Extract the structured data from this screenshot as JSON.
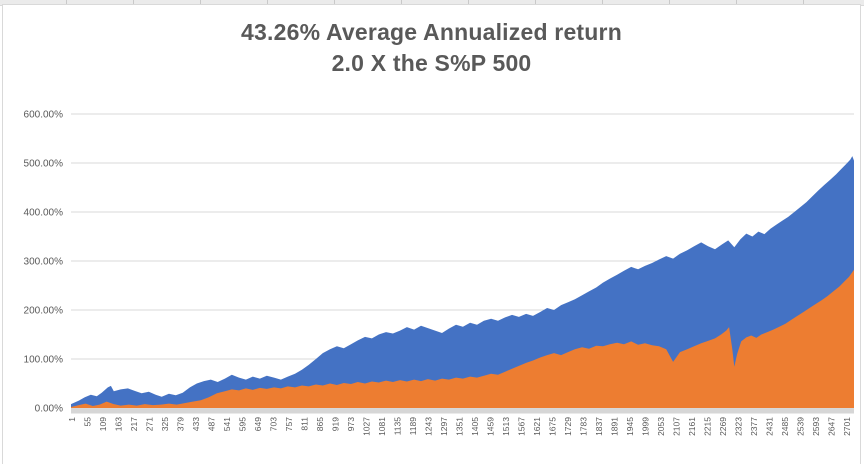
{
  "chart": {
    "title_line1": "43.26% Average Annualized return",
    "title_line2": "2.0 X the S%P 500"
  },
  "chart_data": {
    "type": "area",
    "title": "43.26% Average Annualized return 2.0 X the S%P 500",
    "legend_position": "none",
    "grid": true,
    "grid_color": "#d9d9d9",
    "axis_text_color": "#595959",
    "title_color": "#595959",
    "baseline_band_color": "#d6d6d6",
    "x_axis": {
      "range": [
        1,
        2728
      ],
      "tick_labels": [
        1,
        55,
        109,
        163,
        217,
        271,
        325,
        379,
        433,
        487,
        541,
        595,
        649,
        703,
        757,
        811,
        865,
        919,
        973,
        1027,
        1081,
        1135,
        1189,
        1243,
        1297,
        1351,
        1405,
        1459,
        1513,
        1567,
        1621,
        1675,
        1729,
        1783,
        1837,
        1891,
        1945,
        1999,
        2053,
        2107,
        2161,
        2215,
        2269,
        2323,
        2377,
        2431,
        2485,
        2539,
        2593,
        2647,
        2701
      ]
    },
    "y_axis": {
      "range_pct": [
        0,
        600
      ],
      "ticks": [
        {
          "value": 0,
          "label": "0.00%"
        },
        {
          "value": 100,
          "label": "100.00%"
        },
        {
          "value": 200,
          "label": "200.00%"
        },
        {
          "value": 300,
          "label": "300.00%"
        },
        {
          "value": 400,
          "label": "400.00%"
        },
        {
          "value": 500,
          "label": "500.00%"
        },
        {
          "value": 600,
          "label": "600.00%"
        }
      ]
    },
    "series": [
      {
        "name": "blue",
        "color": "#4472c4",
        "points": [
          [
            1,
            8
          ],
          [
            28,
            15
          ],
          [
            49,
            22
          ],
          [
            70,
            27
          ],
          [
            91,
            24
          ],
          [
            108,
            31
          ],
          [
            129,
            42
          ],
          [
            140,
            45
          ],
          [
            150,
            34
          ],
          [
            174,
            38
          ],
          [
            199,
            40
          ],
          [
            223,
            35
          ],
          [
            247,
            30
          ],
          [
            272,
            33
          ],
          [
            296,
            27
          ],
          [
            317,
            23
          ],
          [
            342,
            29
          ],
          [
            366,
            26
          ],
          [
            390,
            31
          ],
          [
            415,
            42
          ],
          [
            439,
            50
          ],
          [
            464,
            55
          ],
          [
            488,
            58
          ],
          [
            512,
            53
          ],
          [
            537,
            60
          ],
          [
            561,
            68
          ],
          [
            586,
            62
          ],
          [
            610,
            58
          ],
          [
            634,
            64
          ],
          [
            659,
            60
          ],
          [
            683,
            66
          ],
          [
            708,
            62
          ],
          [
            732,
            58
          ],
          [
            756,
            64
          ],
          [
            781,
            70
          ],
          [
            805,
            78
          ],
          [
            829,
            88
          ],
          [
            854,
            100
          ],
          [
            878,
            112
          ],
          [
            903,
            120
          ],
          [
            927,
            126
          ],
          [
            951,
            122
          ],
          [
            976,
            130
          ],
          [
            1000,
            138
          ],
          [
            1025,
            145
          ],
          [
            1049,
            142
          ],
          [
            1073,
            150
          ],
          [
            1098,
            155
          ],
          [
            1122,
            152
          ],
          [
            1147,
            158
          ],
          [
            1171,
            165
          ],
          [
            1196,
            160
          ],
          [
            1220,
            168
          ],
          [
            1244,
            163
          ],
          [
            1269,
            158
          ],
          [
            1293,
            153
          ],
          [
            1317,
            162
          ],
          [
            1342,
            170
          ],
          [
            1366,
            166
          ],
          [
            1391,
            174
          ],
          [
            1415,
            170
          ],
          [
            1439,
            178
          ],
          [
            1464,
            182
          ],
          [
            1488,
            178
          ],
          [
            1513,
            185
          ],
          [
            1537,
            190
          ],
          [
            1561,
            186
          ],
          [
            1586,
            192
          ],
          [
            1610,
            188
          ],
          [
            1635,
            196
          ],
          [
            1659,
            204
          ],
          [
            1683,
            200
          ],
          [
            1708,
            210
          ],
          [
            1732,
            216
          ],
          [
            1756,
            222
          ],
          [
            1781,
            230
          ],
          [
            1805,
            238
          ],
          [
            1830,
            246
          ],
          [
            1854,
            256
          ],
          [
            1878,
            264
          ],
          [
            1903,
            272
          ],
          [
            1927,
            280
          ],
          [
            1952,
            288
          ],
          [
            1976,
            283
          ],
          [
            2000,
            290
          ],
          [
            2025,
            296
          ],
          [
            2049,
            303
          ],
          [
            2074,
            310
          ],
          [
            2098,
            305
          ],
          [
            2122,
            315
          ],
          [
            2147,
            322
          ],
          [
            2171,
            330
          ],
          [
            2196,
            338
          ],
          [
            2220,
            330
          ],
          [
            2244,
            324
          ],
          [
            2269,
            334
          ],
          [
            2290,
            342
          ],
          [
            2311,
            328
          ],
          [
            2332,
            344
          ],
          [
            2353,
            356
          ],
          [
            2374,
            350
          ],
          [
            2395,
            360
          ],
          [
            2416,
            355
          ],
          [
            2437,
            366
          ],
          [
            2457,
            374
          ],
          [
            2478,
            382
          ],
          [
            2499,
            390
          ],
          [
            2520,
            400
          ],
          [
            2541,
            410
          ],
          [
            2562,
            420
          ],
          [
            2583,
            432
          ],
          [
            2604,
            444
          ],
          [
            2624,
            455
          ],
          [
            2645,
            466
          ],
          [
            2666,
            477
          ],
          [
            2684,
            488
          ],
          [
            2701,
            498
          ],
          [
            2715,
            507
          ],
          [
            2722,
            514
          ],
          [
            2728,
            505
          ]
        ]
      },
      {
        "name": "orange",
        "color": "#ed7d31",
        "points": [
          [
            1,
            2
          ],
          [
            28,
            6
          ],
          [
            52,
            9
          ],
          [
            77,
            4
          ],
          [
            101,
            7
          ],
          [
            125,
            13
          ],
          [
            150,
            8
          ],
          [
            174,
            5
          ],
          [
            202,
            7
          ],
          [
            230,
            5
          ],
          [
            258,
            8
          ],
          [
            286,
            6
          ],
          [
            314,
            7
          ],
          [
            342,
            9
          ],
          [
            369,
            7
          ],
          [
            397,
            10
          ],
          [
            425,
            13
          ],
          [
            453,
            16
          ],
          [
            481,
            22
          ],
          [
            509,
            30
          ],
          [
            537,
            34
          ],
          [
            561,
            38
          ],
          [
            586,
            36
          ],
          [
            610,
            40
          ],
          [
            634,
            37
          ],
          [
            659,
            41
          ],
          [
            683,
            39
          ],
          [
            708,
            42
          ],
          [
            732,
            40
          ],
          [
            756,
            44
          ],
          [
            781,
            42
          ],
          [
            805,
            46
          ],
          [
            829,
            44
          ],
          [
            854,
            48
          ],
          [
            878,
            46
          ],
          [
            903,
            50
          ],
          [
            927,
            47
          ],
          [
            951,
            51
          ],
          [
            976,
            49
          ],
          [
            1000,
            53
          ],
          [
            1025,
            50
          ],
          [
            1049,
            54
          ],
          [
            1073,
            52
          ],
          [
            1098,
            56
          ],
          [
            1122,
            53
          ],
          [
            1147,
            57
          ],
          [
            1171,
            54
          ],
          [
            1196,
            58
          ],
          [
            1220,
            55
          ],
          [
            1244,
            59
          ],
          [
            1269,
            56
          ],
          [
            1293,
            60
          ],
          [
            1317,
            58
          ],
          [
            1342,
            62
          ],
          [
            1366,
            60
          ],
          [
            1391,
            64
          ],
          [
            1415,
            62
          ],
          [
            1439,
            66
          ],
          [
            1464,
            70
          ],
          [
            1488,
            68
          ],
          [
            1513,
            74
          ],
          [
            1537,
            80
          ],
          [
            1561,
            86
          ],
          [
            1586,
            92
          ],
          [
            1610,
            97
          ],
          [
            1635,
            103
          ],
          [
            1659,
            108
          ],
          [
            1683,
            112
          ],
          [
            1708,
            108
          ],
          [
            1732,
            114
          ],
          [
            1756,
            120
          ],
          [
            1781,
            124
          ],
          [
            1805,
            121
          ],
          [
            1830,
            127
          ],
          [
            1854,
            126
          ],
          [
            1878,
            130
          ],
          [
            1903,
            133
          ],
          [
            1927,
            130
          ],
          [
            1952,
            136
          ],
          [
            1976,
            129
          ],
          [
            2000,
            132
          ],
          [
            2025,
            128
          ],
          [
            2049,
            126
          ],
          [
            2074,
            120
          ],
          [
            2098,
            94
          ],
          [
            2122,
            114
          ],
          [
            2147,
            120
          ],
          [
            2171,
            126
          ],
          [
            2196,
            132
          ],
          [
            2220,
            137
          ],
          [
            2244,
            142
          ],
          [
            2265,
            150
          ],
          [
            2283,
            158
          ],
          [
            2293,
            165
          ],
          [
            2304,
            120
          ],
          [
            2311,
            84
          ],
          [
            2321,
            110
          ],
          [
            2335,
            136
          ],
          [
            2353,
            144
          ],
          [
            2370,
            148
          ],
          [
            2388,
            143
          ],
          [
            2405,
            150
          ],
          [
            2426,
            155
          ],
          [
            2447,
            160
          ],
          [
            2468,
            166
          ],
          [
            2489,
            172
          ],
          [
            2510,
            180
          ],
          [
            2531,
            188
          ],
          [
            2552,
            196
          ],
          [
            2573,
            204
          ],
          [
            2594,
            212
          ],
          [
            2615,
            220
          ],
          [
            2635,
            228
          ],
          [
            2656,
            238
          ],
          [
            2677,
            248
          ],
          [
            2694,
            258
          ],
          [
            2711,
            268
          ],
          [
            2728,
            282
          ]
        ]
      }
    ]
  }
}
